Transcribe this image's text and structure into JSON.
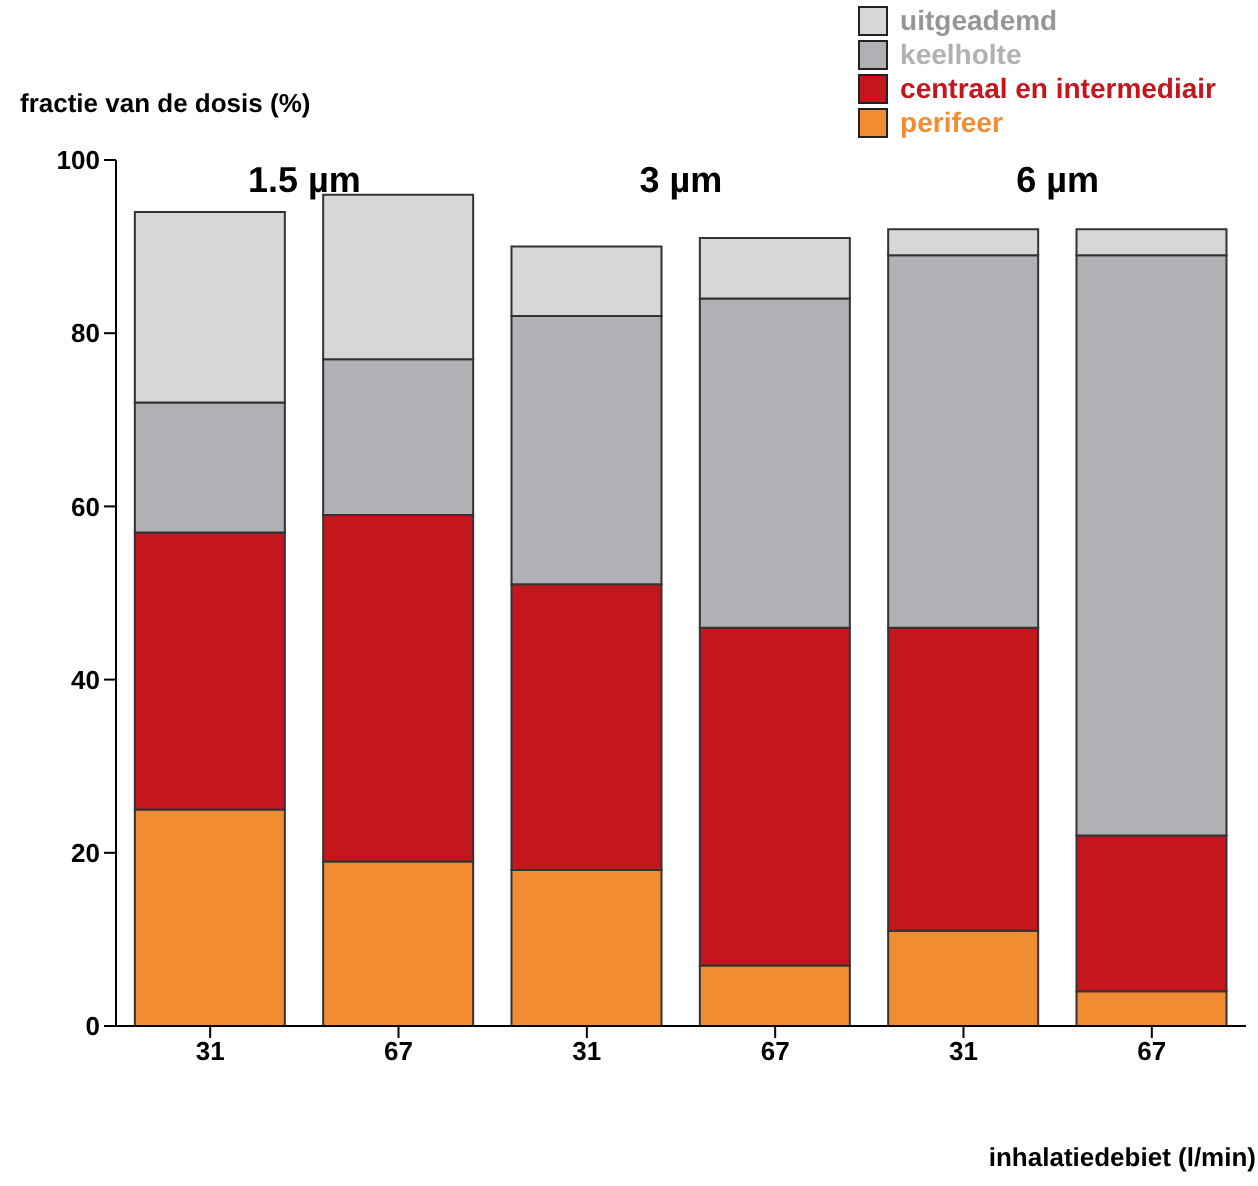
{
  "chart_data": {
    "type": "bar",
    "stacked": true,
    "ylabel": "fractie van de dosis (%)",
    "xlabel": "inhalatiedebiet (l/min)",
    "categories": [
      "31",
      "67",
      "31",
      "67",
      "31",
      "67"
    ],
    "series": [
      {
        "name": "perifeer",
        "color": "#f28c33",
        "values": [
          25,
          19,
          18,
          7,
          11,
          4
        ]
      },
      {
        "name": "centraal en intermediair",
        "color": "#c4161c",
        "values": [
          32,
          40,
          33,
          39,
          35,
          18
        ]
      },
      {
        "name": "keelholte",
        "color": "#b0b1b5",
        "values": [
          15,
          18,
          31,
          38,
          43,
          67
        ]
      },
      {
        "name": "uitgeademd",
        "color": "#d5d7d9",
        "values": [
          22,
          19,
          8,
          7,
          3,
          3
        ]
      }
    ],
    "ylim": [
      0,
      100
    ],
    "yticks": [
      0,
      20,
      40,
      60,
      80,
      100
    ],
    "grid": false,
    "legend": "top right",
    "annotations": [
      "1.5 µm",
      "3 µm",
      "6 µm"
    ]
  }
}
